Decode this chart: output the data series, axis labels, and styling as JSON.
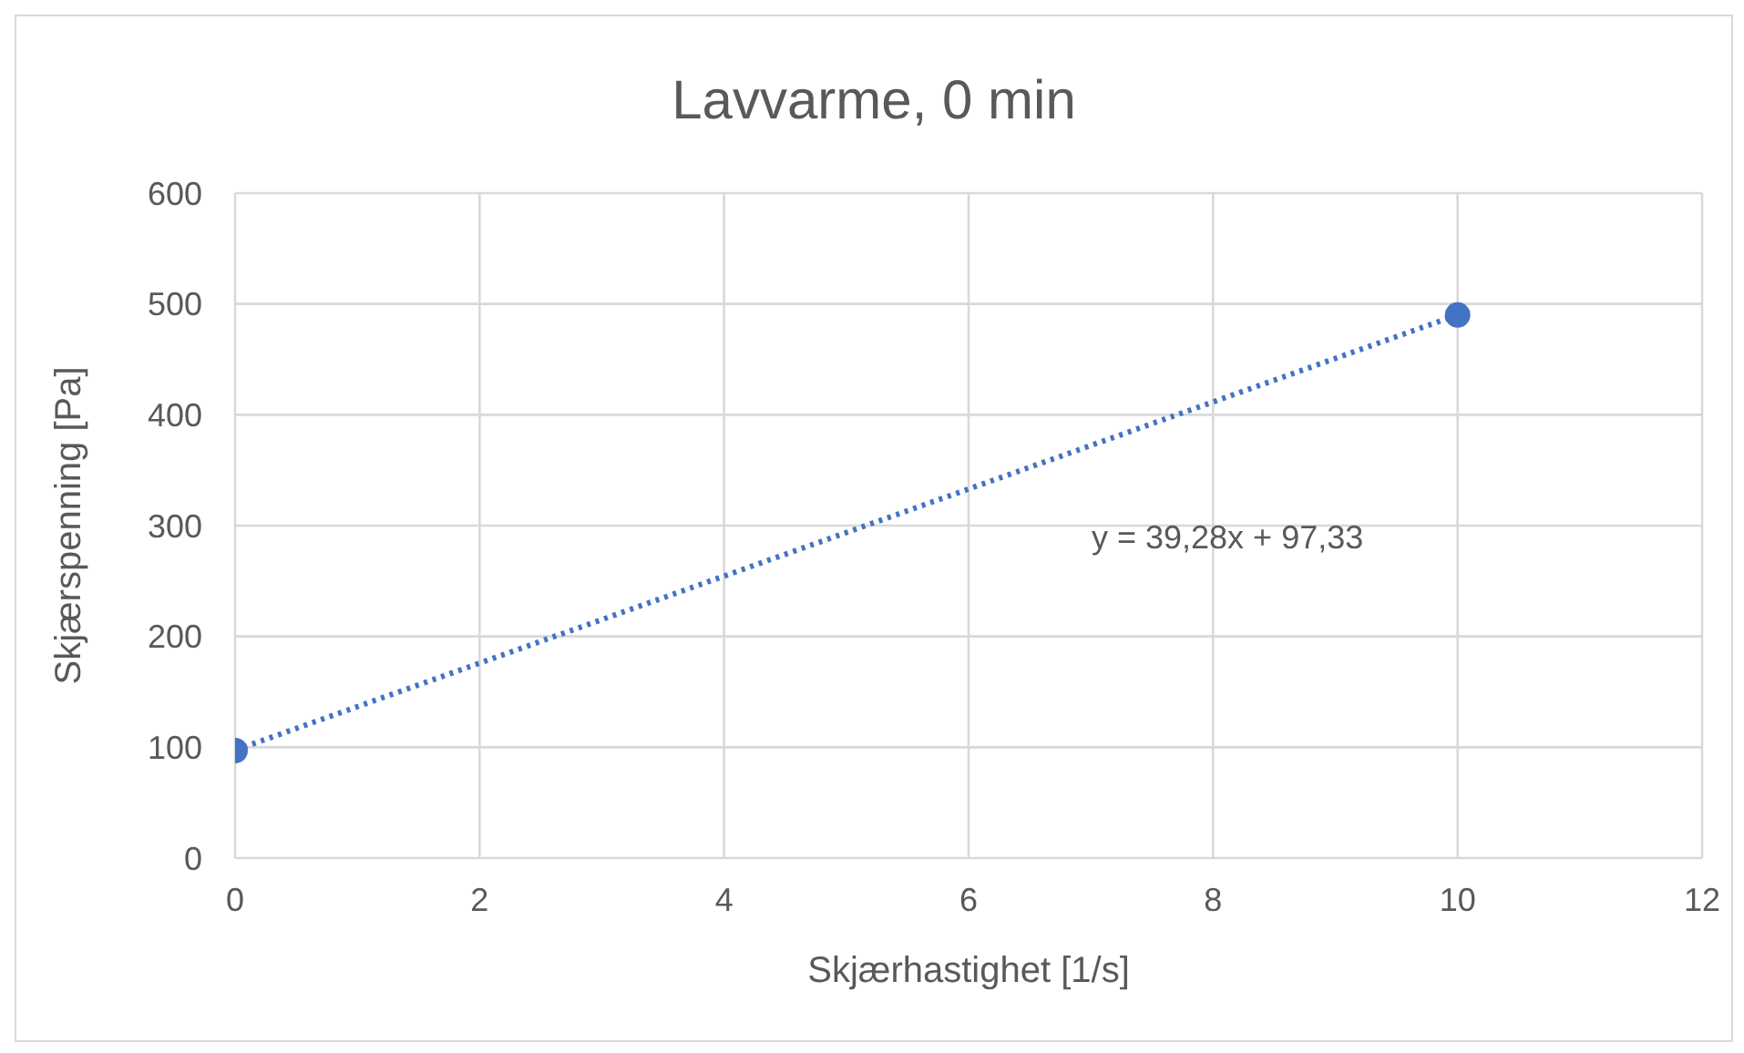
{
  "chart_data": {
    "type": "scatter",
    "title": "Lavvarme, 0 min",
    "xlabel": "Skjærhastighet [1/s]",
    "ylabel": "Skjærspenning [Pa]",
    "xlim": [
      0,
      12
    ],
    "xticks": [
      0,
      2,
      4,
      6,
      8,
      10,
      12
    ],
    "ylim": [
      0,
      600
    ],
    "yticks": [
      0,
      100,
      200,
      300,
      400,
      500,
      600
    ],
    "grid": true,
    "marker": "circle",
    "annotations": [
      "y = 39,28x + 97,33"
    ],
    "x": [
      0,
      10
    ],
    "series": [
      {
        "color": "#4472c4",
        "values": [
          97,
          490
        ]
      },
      {
        "type": "line",
        "color": "#4472c4",
        "line_style": "dotted",
        "marker": "none",
        "values": [
          97.33,
          490.13
        ]
      }
    ]
  }
}
